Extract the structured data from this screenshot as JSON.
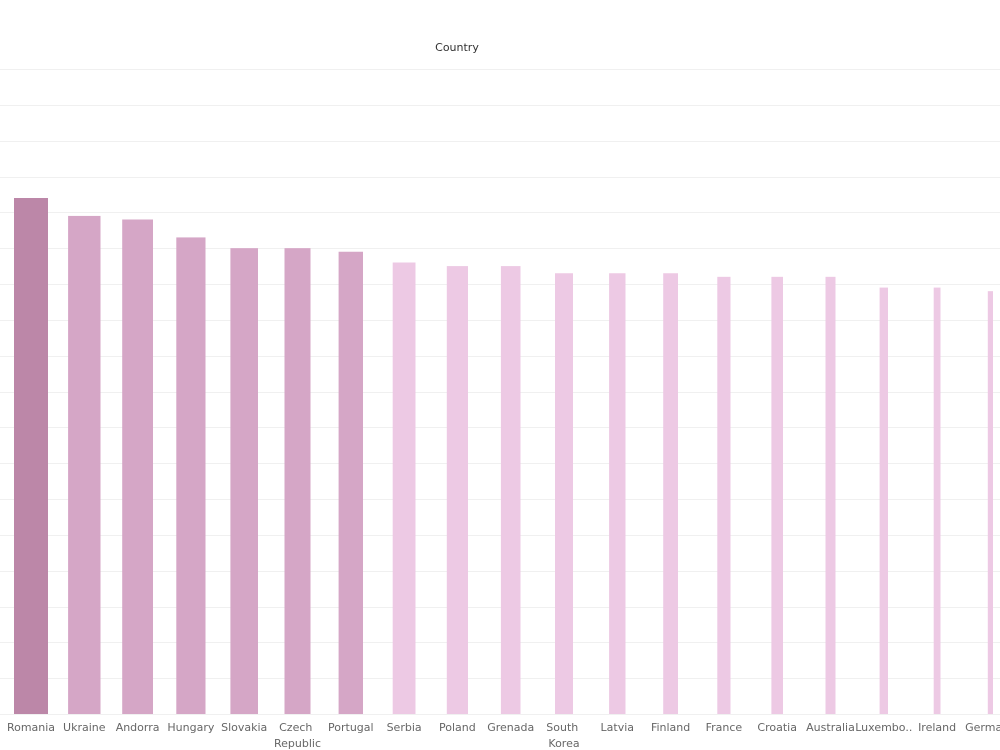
{
  "chart_data": {
    "type": "bar",
    "title": "Country",
    "categories": [
      "Romania",
      "Ukraine",
      "Andorra",
      "Hungary",
      "Slovakia",
      "Czech Republic",
      "Portugal",
      "Serbia",
      "Poland",
      "Grenada",
      "South Korea",
      "Latvia",
      "Finland",
      "France",
      "Croatia",
      "Australia",
      "Luxembo..",
      "Ireland",
      "Germany"
    ],
    "values": [
      14.4,
      13.9,
      13.8,
      13.3,
      13.0,
      13.0,
      12.9,
      12.6,
      12.5,
      12.5,
      12.3,
      12.3,
      12.3,
      12.2,
      12.2,
      12.2,
      11.9,
      11.9,
      11.8
    ],
    "colors": [
      "#bc87a8",
      "#d5a6c6",
      "#d5a6c6",
      "#d5a6c6",
      "#d5a6c6",
      "#d5a6c6",
      "#d5a6c6",
      "#edc9e4",
      "#edc9e4",
      "#edc9e4",
      "#edc9e4",
      "#edc9e4",
      "#edc9e4",
      "#edc9e4",
      "#edc9e4",
      "#edc9e4",
      "#edc9e4",
      "#edc9e4",
      "#edc9e4"
    ],
    "ylim": [
      0,
      18
    ],
    "yticks": [
      0,
      1,
      2,
      3,
      4,
      5,
      6,
      7,
      8,
      9,
      10,
      11,
      12,
      13,
      14,
      15,
      16,
      17,
      18
    ],
    "grid": true
  }
}
